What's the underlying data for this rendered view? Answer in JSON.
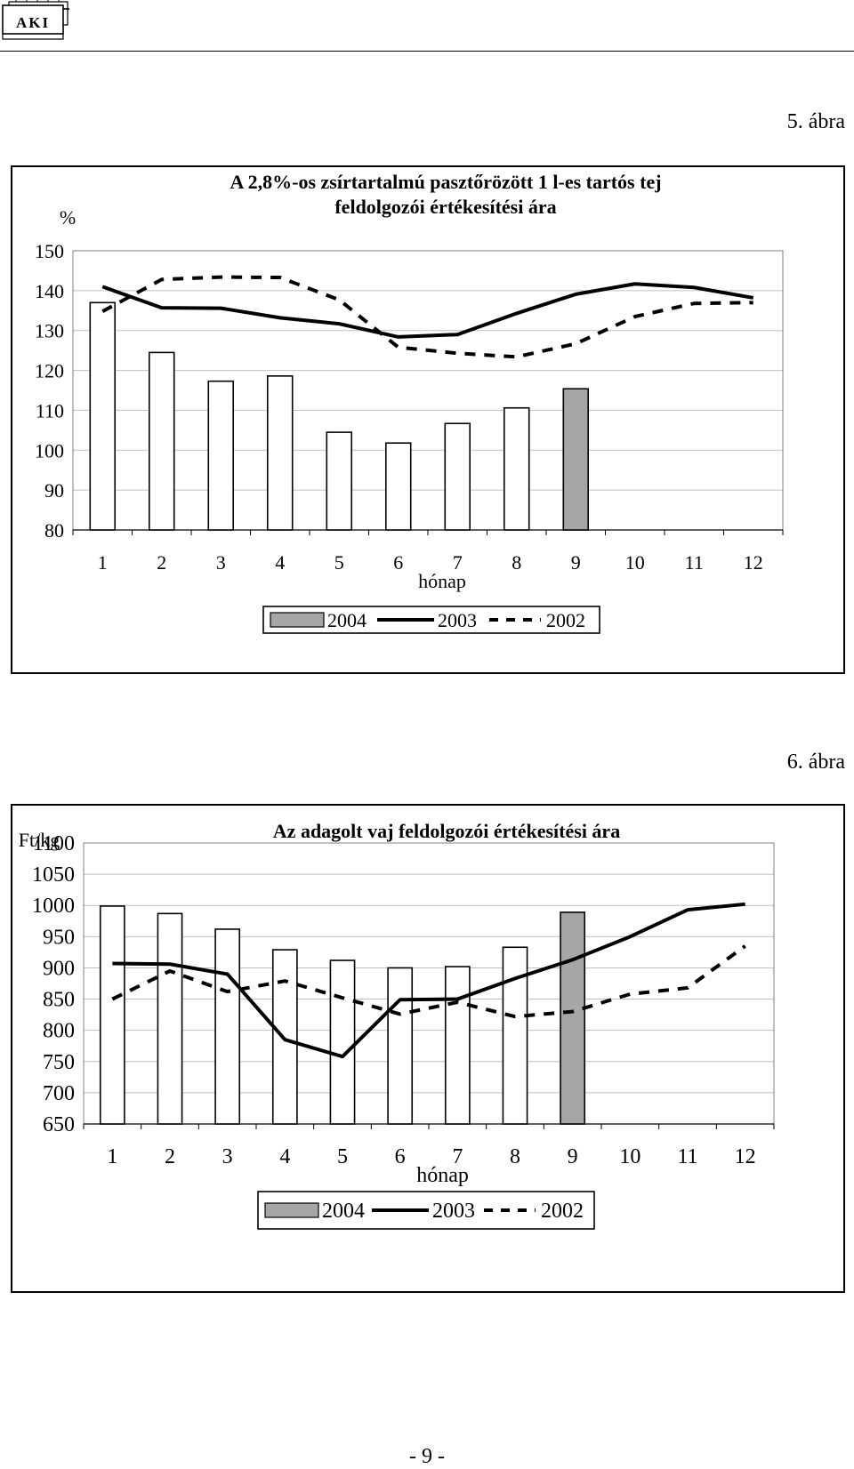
{
  "logo_text": "AKI",
  "figure_labels": [
    "5. ábra",
    "6. ábra"
  ],
  "page_number": "- 9 -",
  "colors": {
    "bar_fill": "#FFFFFF",
    "bar_highlight": "#A6A6A6",
    "line": "#000000",
    "grid": "#C0C0C0"
  },
  "chart_data": [
    {
      "type": "bar",
      "title": "A 2,8%-os zsírtartalmú pasztőrözött 1 l-es tartós tej",
      "subtitle": "feldolgozói értékesítési ára",
      "ylabel": "%",
      "xlabel": "hónap",
      "ylim": [
        80,
        150
      ],
      "yticks": [
        80,
        90,
        100,
        110,
        120,
        130,
        140,
        150
      ],
      "categories": [
        "1",
        "2",
        "3",
        "4",
        "5",
        "6",
        "7",
        "8",
        "9",
        "10",
        "11",
        "12"
      ],
      "grid": true,
      "legend": "bottom",
      "series": [
        {
          "name": "2004",
          "kind": "bar",
          "values": [
            137.0,
            124.5,
            117.3,
            118.6,
            104.5,
            101.8,
            106.7,
            110.6,
            115.4,
            null,
            null,
            null
          ],
          "highlight_index": 8
        },
        {
          "name": "2003",
          "kind": "line",
          "style": "solid",
          "values": [
            141.0,
            135.7,
            135.6,
            133.2,
            131.7,
            128.4,
            129.0,
            134.3,
            139.1,
            141.7,
            140.8,
            138.2
          ]
        },
        {
          "name": "2002",
          "kind": "line",
          "style": "dashed",
          "values": [
            134.8,
            142.8,
            143.4,
            143.3,
            137.7,
            125.8,
            124.3,
            123.4,
            126.7,
            133.5,
            136.8,
            137.0
          ]
        }
      ]
    },
    {
      "type": "bar",
      "title": "Az adagolt vaj feldolgozói értékesítési ára",
      "ylabel": "Ft/kg",
      "xlabel": "hónap",
      "ylim": [
        650,
        1100
      ],
      "yticks": [
        650,
        700,
        750,
        800,
        850,
        900,
        950,
        1000,
        1050,
        1100
      ],
      "categories": [
        "1",
        "2",
        "3",
        "4",
        "5",
        "6",
        "7",
        "8",
        "9",
        "10",
        "11",
        "12"
      ],
      "grid": true,
      "legend": "bottom",
      "series": [
        {
          "name": "2004",
          "kind": "bar",
          "values": [
            999,
            987,
            962,
            929,
            912,
            900,
            902,
            933,
            989,
            null,
            null,
            null
          ],
          "highlight_index": 8
        },
        {
          "name": "2003",
          "kind": "line",
          "style": "solid",
          "values": [
            907,
            906,
            890,
            785,
            758,
            849,
            850,
            883,
            913,
            950,
            993,
            1002
          ]
        },
        {
          "name": "2002",
          "kind": "line",
          "style": "dashed",
          "values": [
            850,
            895,
            862,
            879,
            852,
            826,
            845,
            822,
            830,
            858,
            868,
            935
          ]
        }
      ]
    }
  ]
}
